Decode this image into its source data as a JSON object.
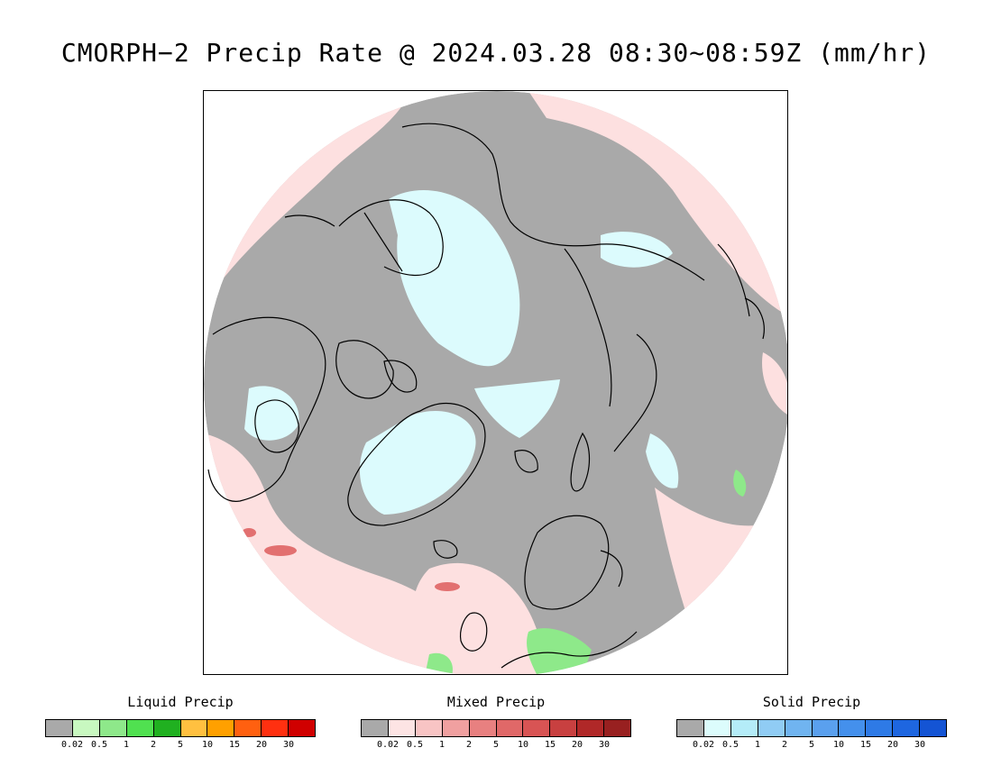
{
  "title": "CMORPH−2 Precip Rate @ 2024.03.28 08:30~08:59Z (mm/hr)",
  "map": {
    "projection": "north-polar-stereographic",
    "colors": {
      "no_precip": "#a9a9a9",
      "liquid_light": "#c8f5c0",
      "liquid_mid": "#8ee98a",
      "mixed_light": "#fde0e0",
      "mixed_mid": "#f4aaaa",
      "mixed_red": "#e27070",
      "solid_light": "#dcfbfd",
      "coast": "#000000"
    }
  },
  "legends": [
    {
      "title": "Liquid Precip",
      "ticks": [
        "0.02",
        "0.5",
        "1",
        "2",
        "5",
        "10",
        "15",
        "20",
        "30"
      ],
      "colors": [
        "#a9a9a9",
        "#c8f8c0",
        "#8ee88a",
        "#50e050",
        "#20b020",
        "#ffc040",
        "#ffa000",
        "#ff6010",
        "#ff3010",
        "#d00000"
      ]
    },
    {
      "title": "Mixed Precip",
      "ticks": [
        "0.02",
        "0.5",
        "1",
        "2",
        "5",
        "10",
        "15",
        "20",
        "30"
      ],
      "colors": [
        "#a9a9a9",
        "#fde4e4",
        "#f8c4c4",
        "#f0a0a0",
        "#e88080",
        "#e06868",
        "#d85454",
        "#c84040",
        "#b02828",
        "#982020"
      ]
    },
    {
      "title": "Solid Precip",
      "ticks": [
        "0.02",
        "0.5",
        "1",
        "2",
        "5",
        "10",
        "15",
        "20",
        "30"
      ],
      "colors": [
        "#a9a9a9",
        "#dcfcfc",
        "#b4ecf8",
        "#90ccf4",
        "#70b4f0",
        "#5aa0ee",
        "#4490ec",
        "#2e7ae6",
        "#1e66e0",
        "#1454d4"
      ]
    }
  ]
}
